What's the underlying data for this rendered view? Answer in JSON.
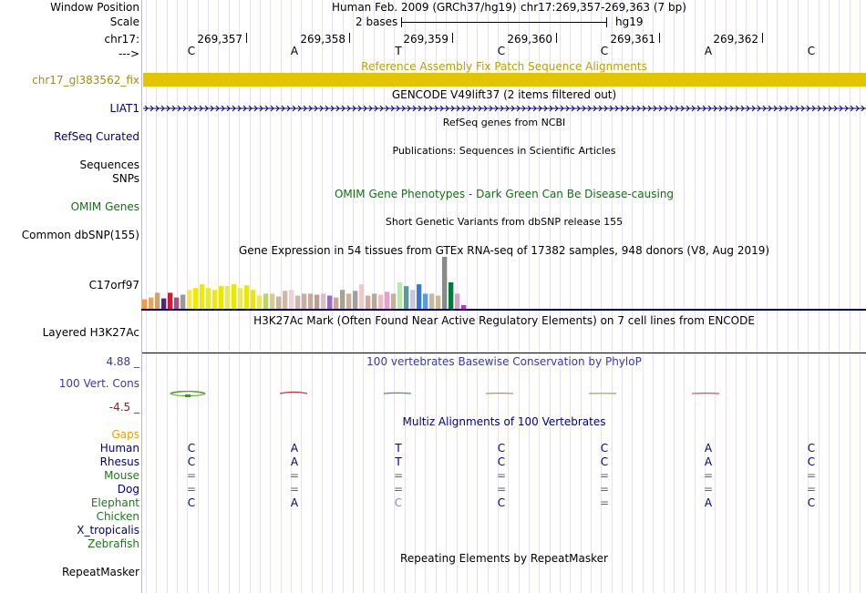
{
  "header": {
    "window_position_label": "Window Position",
    "scale_label": "Scale",
    "chrom_label": "chr17:",
    "strand_label": "--->",
    "assembly_text": "Human Feb. 2009 (GRCh37/hg19)",
    "position_text": "chr17:269,357-269,363 (7 bp)",
    "scale_text": "2 bases",
    "db_text": "hg19",
    "ticks": [
      "269,357",
      "269,358",
      "269,359",
      "269,360",
      "269,361",
      "269,362"
    ],
    "bases": [
      "C",
      "A",
      "T",
      "C",
      "C",
      "A",
      "C"
    ]
  },
  "tracks": {
    "fix_patch": {
      "title": "Reference Assembly Fix Patch Sequence Alignments",
      "label": "chr17_gl383562_fix",
      "color": "#e2c400"
    },
    "gencode": {
      "title": "GENCODE V49lift37 (2 items filtered out)",
      "label": "LIAT1"
    },
    "refseq": {
      "title": "RefSeq genes from NCBI",
      "label": "RefSeq Curated"
    },
    "publications": {
      "title": "Publications: Sequences in Scientific Articles",
      "label": "Sequences"
    },
    "snps": {
      "label": "SNPs"
    },
    "omim": {
      "title": "OMIM Gene Phenotypes - Dark Green Can Be Disease-causing",
      "label": "OMIM Genes"
    },
    "dbsnp": {
      "title": "Short Genetic Variants from dbSNP release 155",
      "label": "Common dbSNP(155)"
    },
    "gtex": {
      "title": "Gene Expression in 54 tissues from GTEx RNA-seq of 17382 samples, 948 donors (V8, Aug 2019)",
      "label": "C17orf97"
    },
    "h3k27ac": {
      "title": "H3K27Ac Mark (Often Found Near Active Regulatory Elements) on 7 cell lines from ENCODE",
      "label": "Layered H3K27Ac"
    },
    "phylop": {
      "title": "100 vertebrates Basewise Conservation by PhyloP",
      "label": "100 Vert. Cons",
      "max": "4.88 _",
      "min": "-4.5 _"
    },
    "multiz": {
      "title": "Multiz Alignments of 100 Vertebrates",
      "gaps_label": "Gaps"
    },
    "repeatmasker": {
      "title": "Repeating Elements by RepeatMasker",
      "label": "RepeatMasker"
    }
  },
  "species": [
    {
      "name": "Human",
      "color": "#000080",
      "bases": [
        "C",
        "A",
        "T",
        "C",
        "C",
        "A",
        "C"
      ]
    },
    {
      "name": "Rhesus",
      "color": "#000080",
      "bases": [
        "C",
        "A",
        "T",
        "C",
        "C",
        "A",
        "C"
      ]
    },
    {
      "name": "Mouse",
      "color": "#1a7a1a",
      "bases": [
        "=",
        "=",
        "=",
        "=",
        "=",
        "=",
        "="
      ]
    },
    {
      "name": "Dog",
      "color": "#000080",
      "bases": [
        "=",
        "=",
        "=",
        "=",
        "=",
        "=",
        "="
      ]
    },
    {
      "name": "Elephant",
      "color": "#1a7a1a",
      "bases": [
        "C",
        "A",
        "C",
        "C",
        "=",
        "A",
        "C"
      ]
    },
    {
      "name": "Chicken",
      "color": "#1a7a1a",
      "bases": [
        "",
        "",
        "",
        "",
        "",
        "",
        ""
      ]
    },
    {
      "name": "X_tropicalis",
      "color": "#000080",
      "bases": [
        "",
        "",
        "",
        "",
        "",
        "",
        ""
      ]
    },
    {
      "name": "Zebrafish",
      "color": "#1a7a1a",
      "bases": [
        "",
        "",
        "",
        "",
        "",
        "",
        ""
      ]
    }
  ],
  "gtex_expression": {
    "unit": "relative",
    "values": [
      10,
      12,
      17,
      11,
      17,
      12,
      15,
      20,
      22,
      26,
      22,
      20,
      24,
      24,
      26,
      22,
      25,
      20,
      14,
      16,
      16,
      13,
      19,
      20,
      14,
      16,
      16,
      15,
      16,
      14,
      12,
      20,
      16,
      19,
      26,
      14,
      16,
      15,
      18,
      16,
      28,
      24,
      20,
      26,
      16,
      16,
      14,
      55,
      28,
      16,
      4
    ],
    "colors": [
      "#f59a3d",
      "#f5a14a",
      "#c7a47a",
      "#4a2a7a",
      "#c71f3a",
      "#b04a83",
      "#9a9a9a",
      "#f5e84f",
      "#f2e800",
      "#f2e800",
      "#e8e83a",
      "#f2e800",
      "#e8e800",
      "#e8e85a",
      "#e8e800",
      "#e8e85a",
      "#e8e800",
      "#e8e800",
      "#e8e85a",
      "#b8d85a",
      "#d8c8a0",
      "#c8b890",
      "#d0b8a8",
      "#f0d0d8",
      "#c8b8a8",
      "#c8b0a0",
      "#c8a8a0",
      "#b8a090",
      "#d8c0c8",
      "#a068c8",
      "#c8a890",
      "#a8a090",
      "#c8b0a0",
      "#a0a0a0",
      "#f0c8c8",
      "#d0a8a0",
      "#b8a898",
      "#f0b8c8",
      "#e8a0c8",
      "#c8b098",
      "#b8e8b0",
      "#5a9a9a",
      "#c8c8d8",
      "#3a78d8",
      "#5a9ad8",
      "#c8b8a0",
      "#c8b898",
      "#8a8a8a",
      "#007a3a",
      "#d8a0c8",
      "#c030d8"
    ]
  },
  "phylop_series": {
    "positions": [
      1,
      2,
      3,
      4,
      5,
      6
    ],
    "values": [
      1.2,
      -0.8,
      0.3,
      0.2,
      0.1,
      -0.2
    ]
  }
}
